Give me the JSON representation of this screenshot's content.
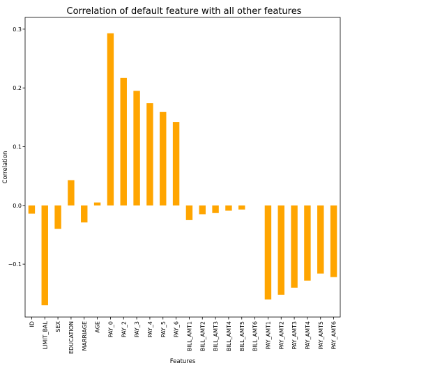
{
  "chart_data": {
    "type": "bar",
    "title": "Correlation of default feature with all other features",
    "xlabel": "Features",
    "ylabel": "Correlation",
    "categories": [
      "ID",
      "LIMIT_BAL",
      "SEX",
      "EDUCATION",
      "MARRIAGE",
      "AGE",
      "PAY_0",
      "PAY_2",
      "PAY_3",
      "PAY_4",
      "PAY_5",
      "PAY_6",
      "BILL_AMT1",
      "BILL_AMT2",
      "BILL_AMT3",
      "BILL_AMT4",
      "BILL_AMT5",
      "BILL_AMT6",
      "PAY_AMT1",
      "PAY_AMT2",
      "PAY_AMT3",
      "PAY_AMT4",
      "PAY_AMT5",
      "PAY_AMT6"
    ],
    "values": [
      -0.014,
      -0.17,
      -0.04,
      0.043,
      -0.029,
      0.005,
      0.293,
      0.217,
      0.195,
      0.174,
      0.159,
      0.142,
      -0.025,
      -0.015,
      -0.013,
      -0.009,
      -0.007,
      0.0,
      -0.16,
      -0.152,
      -0.14,
      -0.128,
      -0.116,
      -0.122
    ],
    "yticks": [
      -0.1,
      0.0,
      0.1,
      0.2,
      0.3
    ],
    "ytick_labels": [
      "−0.1",
      "0.0",
      "0.1",
      "0.2",
      "0.3"
    ],
    "ylim": [
      -0.19,
      0.32
    ],
    "bar_color": "#ffa500",
    "grid": false,
    "legend": "none"
  }
}
